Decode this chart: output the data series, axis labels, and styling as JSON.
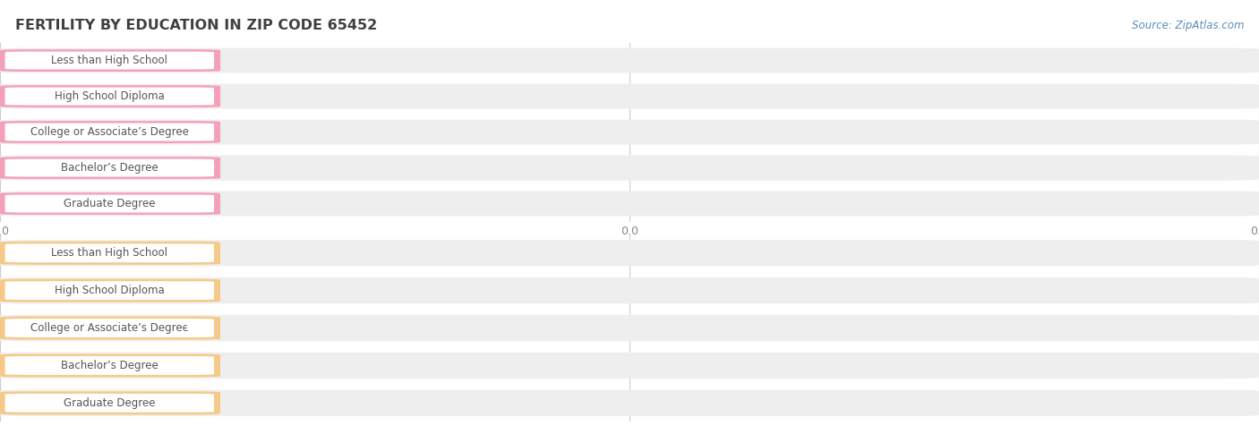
{
  "title": "FERTILITY BY EDUCATION IN ZIP CODE 65452",
  "source": "Source: ZipAtlas.com",
  "categories": [
    "Less than High School",
    "High School Diploma",
    "College or Associate’s Degree",
    "Bachelor’s Degree",
    "Graduate Degree"
  ],
  "values_top": [
    0.0,
    0.0,
    0.0,
    0.0,
    0.0
  ],
  "values_bottom": [
    0.0,
    0.0,
    0.0,
    0.0,
    0.0
  ],
  "bar_color_top": "#F4A0B8",
  "bar_bg_color": "#EEEEEE",
  "bar_color_bottom": "#F5C98A",
  "title_color": "#404040",
  "source_color": "#5B8DB8",
  "bg_color": "#FFFFFF",
  "grid_color": "#CCCCCC",
  "label_text_color": "#555555",
  "value_color_top": "#E8608A",
  "value_color_bottom": "#D4883A"
}
